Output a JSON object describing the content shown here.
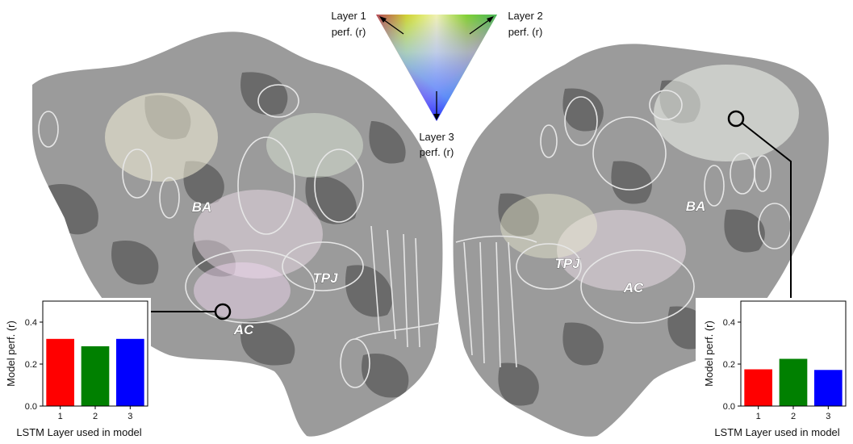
{
  "legend": {
    "layer1_line1": "Layer 1",
    "layer1_line2": "perf. (r)",
    "layer2_line1": "Layer 2",
    "layer2_line2": "perf. (r)",
    "layer3_line1": "Layer 3",
    "layer3_line2": "perf. (r)",
    "colors": {
      "layer1": "#ff0000",
      "layer2": "#00ff00",
      "layer3": "#0000ff"
    }
  },
  "brain": {
    "left_labels": {
      "ba": "BA",
      "tpj": "TPJ",
      "ac": "AC"
    },
    "right_labels": {
      "ba": "BA",
      "tpj": "TPJ",
      "ac": "AC"
    },
    "colors": {
      "cortex_light": "#9b9b9b",
      "cortex_dark": "#6a6a6a",
      "outline": "#e6e6e6"
    }
  },
  "chart_data": [
    {
      "type": "bar",
      "categories": [
        "1",
        "2",
        "3"
      ],
      "values": [
        0.32,
        0.285,
        0.32
      ],
      "colors": [
        "#ff0000",
        "#008000",
        "#0000ff"
      ],
      "xlabel": "LSTM Layer used in model",
      "ylabel": "Model perf. (r)",
      "ylim": [
        0,
        0.5
      ],
      "yticks": [
        "0.0",
        "0.2",
        "0.4"
      ],
      "ytick_values": [
        0,
        0.2,
        0.4
      ]
    },
    {
      "type": "bar",
      "categories": [
        "1",
        "2",
        "3"
      ],
      "values": [
        0.175,
        0.225,
        0.172
      ],
      "colors": [
        "#ff0000",
        "#008000",
        "#0000ff"
      ],
      "xlabel": "LSTM Layer used in model",
      "ylabel": "Model perf. (r)",
      "ylim": [
        0,
        0.5
      ],
      "yticks": [
        "0.0",
        "0.2",
        "0.4"
      ],
      "ytick_values": [
        0,
        0.2,
        0.4
      ]
    }
  ]
}
